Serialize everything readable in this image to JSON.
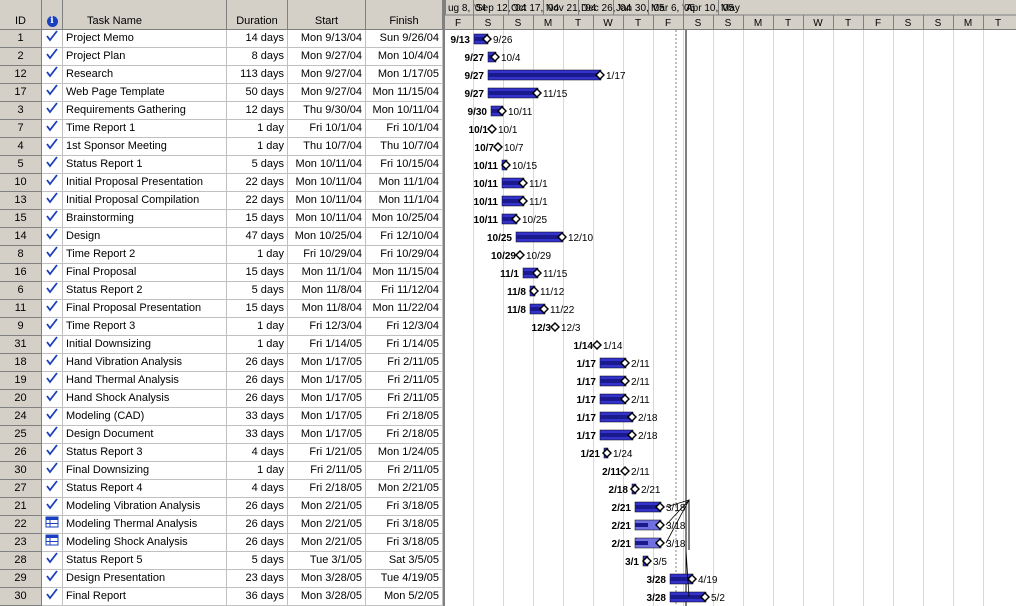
{
  "table": {
    "columns": {
      "id": "ID",
      "info": "i",
      "name": "Task Name",
      "duration": "Duration",
      "start": "Start",
      "finish": "Finish"
    },
    "rows": [
      {
        "id": "1",
        "ind": "check",
        "name": "Project Memo",
        "duration": "14 days",
        "start": "Mon 9/13/04",
        "finish": "Sun 9/26/04"
      },
      {
        "id": "2",
        "ind": "check",
        "name": "Project Plan",
        "duration": "8 days",
        "start": "Mon 9/27/04",
        "finish": "Mon 10/4/04"
      },
      {
        "id": "12",
        "ind": "check",
        "name": "Research",
        "duration": "113 days",
        "start": "Mon 9/27/04",
        "finish": "Mon 1/17/05"
      },
      {
        "id": "17",
        "ind": "check",
        "name": "Web Page Template",
        "duration": "50 days",
        "start": "Mon 9/27/04",
        "finish": "Mon 11/15/04"
      },
      {
        "id": "3",
        "ind": "check",
        "name": "Requirements Gathering",
        "duration": "12 days",
        "start": "Thu 9/30/04",
        "finish": "Mon 10/11/04"
      },
      {
        "id": "7",
        "ind": "check",
        "name": "Time Report 1",
        "duration": "1 day",
        "start": "Fri 10/1/04",
        "finish": "Fri 10/1/04"
      },
      {
        "id": "4",
        "ind": "check",
        "name": "1st Sponsor Meeting",
        "duration": "1 day",
        "start": "Thu 10/7/04",
        "finish": "Thu 10/7/04"
      },
      {
        "id": "5",
        "ind": "check",
        "name": "Status Report 1",
        "duration": "5 days",
        "start": "Mon 10/11/04",
        "finish": "Fri 10/15/04"
      },
      {
        "id": "10",
        "ind": "check",
        "name": "Initial Proposal Presentation",
        "duration": "22 days",
        "start": "Mon 10/11/04",
        "finish": "Mon 11/1/04"
      },
      {
        "id": "13",
        "ind": "check",
        "name": "Initial Proposal Compilation",
        "duration": "22 days",
        "start": "Mon 10/11/04",
        "finish": "Mon 11/1/04"
      },
      {
        "id": "15",
        "ind": "check",
        "name": "Brainstorming",
        "duration": "15 days",
        "start": "Mon 10/11/04",
        "finish": "Mon 10/25/04"
      },
      {
        "id": "14",
        "ind": "check",
        "name": "Design",
        "duration": "47 days",
        "start": "Mon 10/25/04",
        "finish": "Fri 12/10/04"
      },
      {
        "id": "8",
        "ind": "check",
        "name": "Time Report 2",
        "duration": "1 day",
        "start": "Fri 10/29/04",
        "finish": "Fri 10/29/04"
      },
      {
        "id": "16",
        "ind": "check",
        "name": "Final Proposal",
        "duration": "15 days",
        "start": "Mon 11/1/04",
        "finish": "Mon 11/15/04"
      },
      {
        "id": "6",
        "ind": "check",
        "name": "Status Report 2",
        "duration": "5 days",
        "start": "Mon 11/8/04",
        "finish": "Fri 11/12/04"
      },
      {
        "id": "11",
        "ind": "check",
        "name": "Final Proposal Presentation",
        "duration": "15 days",
        "start": "Mon 11/8/04",
        "finish": "Mon 11/22/04"
      },
      {
        "id": "9",
        "ind": "check",
        "name": "Time Report 3",
        "duration": "1 day",
        "start": "Fri 12/3/04",
        "finish": "Fri 12/3/04"
      },
      {
        "id": "31",
        "ind": "check",
        "name": "Initial Downsizing",
        "duration": "1 day",
        "start": "Fri 1/14/05",
        "finish": "Fri 1/14/05"
      },
      {
        "id": "18",
        "ind": "check",
        "name": "Hand Vibration Analysis",
        "duration": "26 days",
        "start": "Mon 1/17/05",
        "finish": "Fri 2/11/05"
      },
      {
        "id": "19",
        "ind": "check",
        "name": "Hand Thermal Analysis",
        "duration": "26 days",
        "start": "Mon 1/17/05",
        "finish": "Fri 2/11/05"
      },
      {
        "id": "20",
        "ind": "check",
        "name": "Hand Shock Analysis",
        "duration": "26 days",
        "start": "Mon 1/17/05",
        "finish": "Fri 2/11/05"
      },
      {
        "id": "24",
        "ind": "check",
        "name": "Modeling (CAD)",
        "duration": "33 days",
        "start": "Mon 1/17/05",
        "finish": "Fri 2/18/05"
      },
      {
        "id": "25",
        "ind": "check",
        "name": "Design Document",
        "duration": "33 days",
        "start": "Mon 1/17/05",
        "finish": "Fri 2/18/05"
      },
      {
        "id": "26",
        "ind": "check",
        "name": "Status Report 3",
        "duration": "4 days",
        "start": "Fri 1/21/05",
        "finish": "Mon 1/24/05"
      },
      {
        "id": "30",
        "ind": "check",
        "name": "Final Downsizing",
        "duration": "1 day",
        "start": "Fri 2/11/05",
        "finish": "Fri 2/11/05"
      },
      {
        "id": "27",
        "ind": "check",
        "name": "Status Report 4",
        "duration": "4 days",
        "start": "Fri 2/18/05",
        "finish": "Mon 2/21/05"
      },
      {
        "id": "21",
        "ind": "check",
        "name": " Modeling Vibration Analysis",
        "duration": "26 days",
        "start": "Mon 2/21/05",
        "finish": "Fri 3/18/05"
      },
      {
        "id": "22",
        "ind": "table",
        "name": "Modeling Thermal Analysis",
        "duration": "26 days",
        "start": "Mon 2/21/05",
        "finish": "Fri 3/18/05"
      },
      {
        "id": "23",
        "ind": "table",
        "name": "Modeling Shock Analysis",
        "duration": "26 days",
        "start": "Mon 2/21/05",
        "finish": "Fri 3/18/05"
      },
      {
        "id": "28",
        "ind": "check",
        "name": "Status Report 5",
        "duration": "5 days",
        "start": "Tue 3/1/05",
        "finish": "Sat 3/5/05"
      },
      {
        "id": "29",
        "ind": "check",
        "name": "Design Presentation",
        "duration": "23 days",
        "start": "Mon 3/28/05",
        "finish": "Tue 4/19/05"
      },
      {
        "id": "30",
        "ind": "check",
        "name": "Final Report",
        "duration": "36 days",
        "start": "Mon 3/28/05",
        "finish": "Mon 5/2/05"
      }
    ]
  },
  "timescale": {
    "major": [
      "ug 8, '04",
      "Sep 12, '04",
      "Oct 17, '04",
      "Nov 21, '04",
      "Dec 26, '04",
      "Jan 30, '05",
      "Mar 6, '05",
      "Apr 10, '05",
      "May"
    ],
    "minor": [
      "F",
      "S",
      "S",
      "M",
      "T",
      "W",
      "T",
      "F",
      "S",
      "S",
      "M",
      "T",
      "W",
      "T",
      "F",
      "S",
      "S",
      "M",
      "T"
    ]
  },
  "gantt": {
    "start_date": "2004-08-08",
    "bars": [
      {
        "start": "2004-09-13",
        "finish": "2004-09-26",
        "start_label": "9/13",
        "finish_label": "9/26",
        "style": "done"
      },
      {
        "start": "2004-09-27",
        "finish": "2004-10-04",
        "start_label": "9/27",
        "finish_label": "10/4",
        "style": "done"
      },
      {
        "start": "2004-09-27",
        "finish": "2005-01-17",
        "start_label": "9/27",
        "finish_label": "1/17",
        "style": "done"
      },
      {
        "start": "2004-09-27",
        "finish": "2004-11-15",
        "start_label": "9/27",
        "finish_label": "11/15",
        "style": "done"
      },
      {
        "start": "2004-09-30",
        "finish": "2004-10-11",
        "start_label": "9/30",
        "finish_label": "10/11",
        "style": "done"
      },
      {
        "start": "2004-10-01",
        "finish": "2004-10-01",
        "start_label": "10/1",
        "finish_label": "10/1",
        "style": "milestone"
      },
      {
        "start": "2004-10-07",
        "finish": "2004-10-07",
        "start_label": "10/7",
        "finish_label": "10/7",
        "style": "milestone"
      },
      {
        "start": "2004-10-11",
        "finish": "2004-10-15",
        "start_label": "10/11",
        "finish_label": "10/15",
        "style": "done"
      },
      {
        "start": "2004-10-11",
        "finish": "2004-11-01",
        "start_label": "10/11",
        "finish_label": "11/1",
        "style": "done"
      },
      {
        "start": "2004-10-11",
        "finish": "2004-11-01",
        "start_label": "10/11",
        "finish_label": "11/1",
        "style": "done"
      },
      {
        "start": "2004-10-11",
        "finish": "2004-10-25",
        "start_label": "10/11",
        "finish_label": "10/25",
        "style": "done"
      },
      {
        "start": "2004-10-25",
        "finish": "2004-12-10",
        "start_label": "10/25",
        "finish_label": "12/10",
        "style": "done"
      },
      {
        "start": "2004-10-29",
        "finish": "2004-10-29",
        "start_label": "10/29",
        "finish_label": "10/29",
        "style": "milestone"
      },
      {
        "start": "2004-11-01",
        "finish": "2004-11-15",
        "start_label": "11/1",
        "finish_label": "11/15",
        "style": "done"
      },
      {
        "start": "2004-11-08",
        "finish": "2004-11-12",
        "start_label": "11/8",
        "finish_label": "11/12",
        "style": "done"
      },
      {
        "start": "2004-11-08",
        "finish": "2004-11-22",
        "start_label": "11/8",
        "finish_label": "11/22",
        "style": "done"
      },
      {
        "start": "2004-12-03",
        "finish": "2004-12-03",
        "start_label": "12/3",
        "finish_label": "12/3",
        "style": "milestone"
      },
      {
        "start": "2005-01-14",
        "finish": "2005-01-14",
        "start_label": "1/14",
        "finish_label": "1/14",
        "style": "milestone"
      },
      {
        "start": "2005-01-17",
        "finish": "2005-02-11",
        "start_label": "1/17",
        "finish_label": "2/11",
        "style": "done"
      },
      {
        "start": "2005-01-17",
        "finish": "2005-02-11",
        "start_label": "1/17",
        "finish_label": "2/11",
        "style": "done"
      },
      {
        "start": "2005-01-17",
        "finish": "2005-02-11",
        "start_label": "1/17",
        "finish_label": "2/11",
        "style": "done"
      },
      {
        "start": "2005-01-17",
        "finish": "2005-02-18",
        "start_label": "1/17",
        "finish_label": "2/18",
        "style": "done"
      },
      {
        "start": "2005-01-17",
        "finish": "2005-02-18",
        "start_label": "1/17",
        "finish_label": "2/18",
        "style": "done"
      },
      {
        "start": "2005-01-21",
        "finish": "2005-01-24",
        "start_label": "1/21",
        "finish_label": "1/24",
        "style": "done"
      },
      {
        "start": "2005-02-11",
        "finish": "2005-02-11",
        "start_label": "2/11",
        "finish_label": "2/11",
        "style": "milestone"
      },
      {
        "start": "2005-02-18",
        "finish": "2005-02-21",
        "start_label": "2/18",
        "finish_label": "2/21",
        "style": "done"
      },
      {
        "start": "2005-02-21",
        "finish": "2005-03-18",
        "start_label": "2/21",
        "finish_label": "3/18",
        "style": "done"
      },
      {
        "start": "2005-02-21",
        "finish": "2005-03-18",
        "start_label": "2/21",
        "finish_label": "3/18",
        "style": "partial"
      },
      {
        "start": "2005-02-21",
        "finish": "2005-03-18",
        "start_label": "2/21",
        "finish_label": "3/18",
        "style": "partial"
      },
      {
        "start": "2005-03-01",
        "finish": "2005-03-05",
        "start_label": "3/1",
        "finish_label": "3/5",
        "style": "done"
      },
      {
        "start": "2005-03-28",
        "finish": "2005-04-19",
        "start_label": "3/28",
        "finish_label": "4/19",
        "style": "done"
      },
      {
        "start": "2005-03-28",
        "finish": "2005-05-02",
        "start_label": "3/28",
        "finish_label": "5/2",
        "style": "done"
      }
    ],
    "colors": {
      "bar_fill": "#3333cc",
      "bar_progress": "#1a1a8c",
      "bar_partial": "#7070e0",
      "grid": "#d8d8d8",
      "header_bg": "#d4d0c8"
    }
  }
}
